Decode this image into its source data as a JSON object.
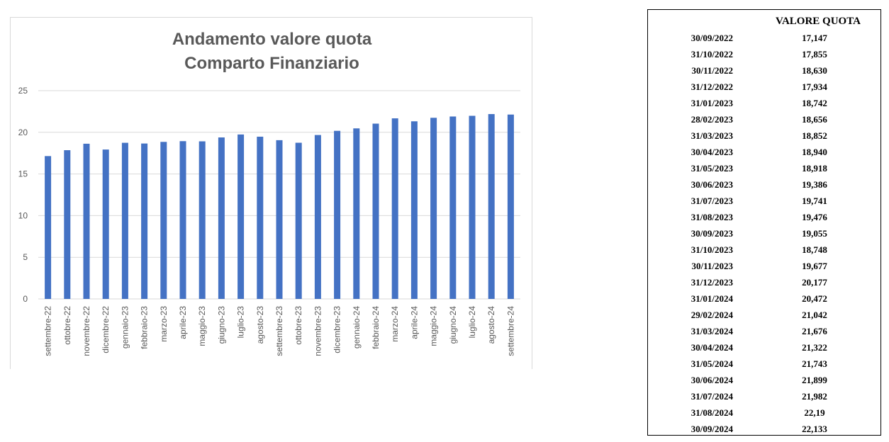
{
  "chart_data": {
    "type": "bar",
    "title_lines": [
      "Andamento valore quota",
      "Comparto Finanziario"
    ],
    "categories": [
      "settembre-22",
      "ottobre-22",
      "novembre-22",
      "dicembre-22",
      "gennaio-23",
      "febbraio-23",
      "marzo-23",
      "aprile-23",
      "maggio-23",
      "giugno-23",
      "luglio-23",
      "agosto-23",
      "settembre-23",
      "ottobre-23",
      "novembre-23",
      "dicembre-23",
      "gennaio-24",
      "febbraio-24",
      "marzo-24",
      "aprile-24",
      "maggio-24",
      "giugno-24",
      "luglio-24",
      "agosto-24",
      "settembre-24"
    ],
    "values": [
      17.147,
      17.855,
      18.63,
      17.934,
      18.742,
      18.656,
      18.852,
      18.94,
      18.918,
      19.386,
      19.741,
      19.476,
      19.055,
      18.748,
      19.677,
      20.177,
      20.472,
      21.042,
      21.676,
      21.322,
      21.743,
      21.899,
      21.982,
      22.19,
      22.133
    ],
    "yticks": [
      "0",
      "5",
      "10",
      "15",
      "20",
      "25"
    ],
    "ylim": [
      0,
      25
    ],
    "grid": true,
    "bar_color": "#4472c4",
    "grid_color": "#d9d9d9"
  },
  "table": {
    "header": "VALORE QUOTA",
    "rows": [
      {
        "date": "30/09/2022",
        "value": "17,147"
      },
      {
        "date": "31/10/2022",
        "value": "17,855"
      },
      {
        "date": "30/11/2022",
        "value": "18,630"
      },
      {
        "date": "31/12/2022",
        "value": "17,934"
      },
      {
        "date": "31/01/2023",
        "value": "18,742"
      },
      {
        "date": "28/02/2023",
        "value": "18,656"
      },
      {
        "date": "31/03/2023",
        "value": "18,852"
      },
      {
        "date": "30/04/2023",
        "value": "18,940"
      },
      {
        "date": "31/05/2023",
        "value": "18,918"
      },
      {
        "date": "30/06/2023",
        "value": "19,386"
      },
      {
        "date": "31/07/2023",
        "value": "19,741"
      },
      {
        "date": "31/08/2023",
        "value": "19,476"
      },
      {
        "date": "30/09/2023",
        "value": "19,055"
      },
      {
        "date": "31/10/2023",
        "value": "18,748"
      },
      {
        "date": "30/11/2023",
        "value": "19,677"
      },
      {
        "date": "31/12/2023",
        "value": "20,177"
      },
      {
        "date": "31/01/2024",
        "value": "20,472"
      },
      {
        "date": "29/02/2024",
        "value": "21,042"
      },
      {
        "date": "31/03/2024",
        "value": "21,676"
      },
      {
        "date": "30/04/2024",
        "value": "21,322"
      },
      {
        "date": "31/05/2024",
        "value": "21,743"
      },
      {
        "date": "30/06/2024",
        "value": "21,899"
      },
      {
        "date": "31/07/2024",
        "value": "21,982"
      },
      {
        "date": "31/08/2024",
        "value": "22,19"
      },
      {
        "date": "30/09/2024",
        "value": "22,133"
      }
    ]
  }
}
